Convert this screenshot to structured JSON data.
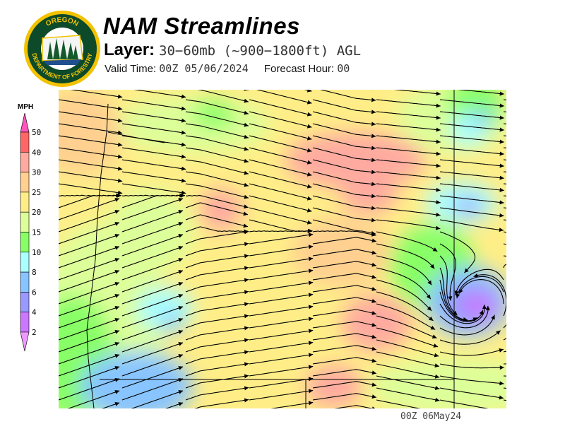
{
  "header": {
    "title": "NAM Streamlines",
    "layer_label": "Layer:",
    "layer_value": "30−60mb (~900−1800ft) AGL",
    "valid_label": "Valid Time:",
    "valid_value": "00Z 05/06/2024",
    "forecast_label": "Forecast Hour:",
    "forecast_value": "00"
  },
  "logo": {
    "text_top": "OREGON",
    "text_bottom": "DEPARTMENT OF FORESTRY"
  },
  "legend": {
    "unit": "MPH",
    "labels": [
      "50",
      "40",
      "30",
      "25",
      "20",
      "15",
      "10",
      "8",
      "6",
      "4",
      "2"
    ],
    "colors": [
      "#ff55bb",
      "#ff6666",
      "#ffaaa0",
      "#ffd090",
      "#ffee88",
      "#ddff99",
      "#88ff66",
      "#aaffff",
      "#88c4ff",
      "#9999ff",
      "#cc77ff",
      "#ee99ff"
    ]
  },
  "footer": {
    "timestamp": "00Z 06May24"
  }
}
